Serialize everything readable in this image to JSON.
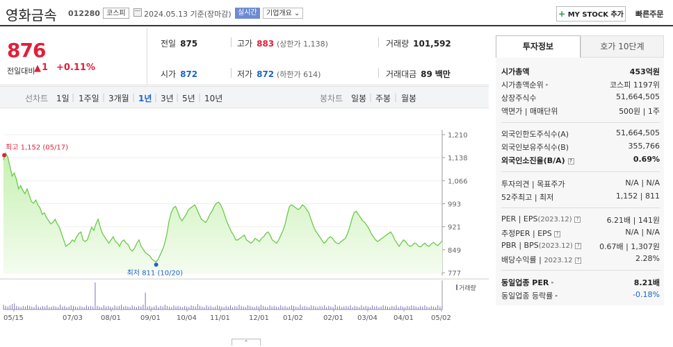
{
  "header": {
    "name": "영화금속",
    "code": "012280",
    "market": "코스피",
    "date": "2024.05.13  기준(장마감)",
    "realtime": "실시간",
    "summary": "기업개요 ⌄",
    "mystock": "MY STOCK 추가",
    "fastorder": "빠른주문"
  },
  "price": {
    "current": "876",
    "change_label": "전일대비",
    "change_arrow": "▲",
    "change": "1",
    "change_pct": "+0.11%",
    "prev_label": "전일",
    "prev": "875",
    "high_label": "고가",
    "high": "883",
    "upper_limit": "(상한가 1,138)",
    "volume_label": "거래량",
    "volume": "101,592",
    "open_label": "시가",
    "open": "872",
    "low_label": "저가",
    "low": "872",
    "lower_limit": "(하한가 614)",
    "amount_label": "거래대금",
    "amount": "89",
    "amount_unit": "백만"
  },
  "periods": {
    "line_chart": "선차트",
    "items": [
      "1일",
      "1주일",
      "3개월",
      "1년",
      "3년",
      "5년",
      "10년"
    ],
    "active": "1년",
    "candle_chart": "봉차트",
    "candle_items": [
      "일봉",
      "주봉",
      "월봉"
    ]
  },
  "chart_data": {
    "type": "area",
    "title": "",
    "ylim": [
      777,
      1210
    ],
    "y_ticks": [
      "1,210",
      "1,138",
      "1,066",
      "993",
      "921",
      "849",
      "777"
    ],
    "x_ticks": [
      "05/15",
      "07/03",
      "08/01",
      "09/01",
      "10/04",
      "11/01",
      "12/01",
      "01/02",
      "02/01",
      "03/04",
      "04/01",
      "05/02"
    ],
    "series": [
      {
        "values": [
          1130,
          1152,
          1140,
          1110,
          1080,
          1090,
          1070,
          1040,
          1050,
          1035,
          1025,
          1040,
          1020,
          1000,
          995,
          1005,
          990,
          980,
          960,
          965,
          950,
          940,
          930,
          935,
          945,
          930,
          920,
          900,
          880,
          860,
          865,
          870,
          880,
          875,
          890,
          900,
          905,
          880,
          875,
          880,
          900,
          920,
          910,
          930,
          945,
          920,
          900,
          890,
          880,
          870,
          880,
          890,
          875,
          870,
          860,
          875,
          880,
          870,
          865,
          850,
          845,
          855,
          870,
          880,
          860,
          850,
          840,
          835,
          830,
          820,
          815,
          811,
          820,
          835,
          850,
          870,
          900,
          940,
          965,
          980,
          985,
          970,
          950,
          940,
          950,
          960,
          975,
          980,
          985,
          990,
          975,
          960,
          945,
          940,
          935,
          945,
          960,
          970,
          985,
          995,
          998,
          990,
          975,
          955,
          935,
          920,
          905,
          895,
          880,
          880,
          885,
          890,
          895,
          880,
          875,
          870,
          875,
          885,
          880,
          875,
          885,
          890,
          900,
          905,
          895,
          880,
          875,
          870,
          880,
          895,
          910,
          930,
          960,
          985,
          990,
          985,
          980,
          975,
          980,
          990,
          985,
          975,
          965,
          945,
          925,
          910,
          900,
          890,
          880,
          870,
          875,
          885,
          890,
          885,
          875,
          870,
          868,
          875,
          880,
          885,
          900,
          920,
          945,
          965,
          970,
          960,
          950,
          940,
          935,
          925,
          915,
          900,
          890,
          880,
          875,
          880,
          885,
          890,
          895,
          900,
          905,
          895,
          880,
          870,
          860,
          870,
          880,
          875,
          865,
          860,
          862,
          870,
          868,
          860,
          858,
          865,
          870,
          862,
          860,
          868,
          872,
          866,
          862,
          870,
          876
        ]
      }
    ],
    "high_label": "최고 1,152 (05/17)",
    "low_label": "최저 811 (10/20)",
    "high_value": 1152,
    "low_value": 811,
    "high_index": 1,
    "low_index": 71,
    "volume_label": "거래량",
    "volume": [
      8,
      6,
      5,
      7,
      9,
      10,
      6,
      5,
      4,
      6,
      5,
      7,
      6,
      5,
      4,
      8,
      5,
      4,
      6,
      5,
      7,
      4,
      5,
      6,
      5,
      4,
      8,
      5,
      6,
      4,
      5,
      7,
      6,
      5,
      4,
      6,
      5,
      4,
      7,
      5,
      6,
      5,
      45,
      6,
      5,
      4,
      7,
      5,
      6,
      5,
      4,
      7,
      5,
      6,
      8,
      5,
      6,
      5,
      4,
      7,
      5,
      4,
      6,
      5,
      8,
      28,
      5,
      6,
      4,
      5,
      7,
      4,
      6,
      5,
      8,
      6,
      5,
      4,
      7,
      5,
      6,
      5,
      4,
      6,
      5,
      4,
      7,
      6,
      5,
      9,
      6,
      5,
      4,
      7,
      5,
      6,
      4,
      5,
      7,
      6,
      5,
      4,
      6,
      5,
      7,
      4,
      6,
      5,
      8,
      6,
      5,
      4,
      7,
      6,
      5,
      4,
      6,
      5,
      8,
      6,
      5,
      4,
      7,
      5,
      6,
      5,
      4,
      7,
      5,
      6,
      4,
      5,
      7,
      6,
      5,
      4,
      8,
      5,
      6,
      5,
      4,
      7,
      6,
      5,
      4,
      6,
      5,
      7,
      4,
      6,
      5,
      4,
      8,
      5,
      6,
      4,
      5,
      6,
      5,
      7,
      4,
      6,
      5,
      4,
      7,
      5,
      6,
      5,
      4,
      7,
      5,
      6,
      4,
      5,
      7,
      6,
      5,
      4,
      6,
      5,
      7,
      4,
      6,
      5,
      4,
      6,
      5,
      7,
      6,
      5,
      4,
      6,
      5,
      7,
      5,
      4,
      6,
      5,
      4,
      7,
      5,
      6
    ]
  },
  "info": {
    "tab_active": "투자정보",
    "tab_other": "호가 10단계",
    "market_cap_label": "시가총액",
    "market_cap": "453억원",
    "cap_rank_label": "시가총액순위",
    "cap_rank": "코스피 1197위",
    "shares_label": "상장주식수",
    "shares": "51,664,505",
    "par_label": "액면가 | 매매단위",
    "par": "500원 | 1주",
    "foreign_limit_label": "외국인한도주식수(A)",
    "foreign_limit": "51,664,505",
    "foreign_hold_label": "외국인보유주식수(B)",
    "foreign_hold": "355,766",
    "foreign_rate_label": "외국인소진율(B/A)",
    "foreign_rate": "0.69%",
    "opinion_label": "투자의견 | 목표주가",
    "opinion": "N/A | N/A",
    "week52_label": "52주최고 | 최저",
    "week52": "1,152 | 811",
    "per_label": "PER | EPS",
    "per_period": "(2023.12)",
    "per": "6.21배 | 141원",
    "est_per_label": "추정PER | EPS",
    "est_per": "N/A | N/A",
    "pbr_label": "PBR | BPS",
    "pbr_period": "(2023.12)",
    "pbr": "0.67배 | 1,307원",
    "div_label": "배당수익률 |",
    "div_period": "2023.12",
    "div": "2.28%",
    "sector_per_label": "동일업종 PER",
    "sector_per": "8.21배",
    "sector_chg_label": "동일업종 등락률",
    "sector_chg": "-0.18%"
  }
}
